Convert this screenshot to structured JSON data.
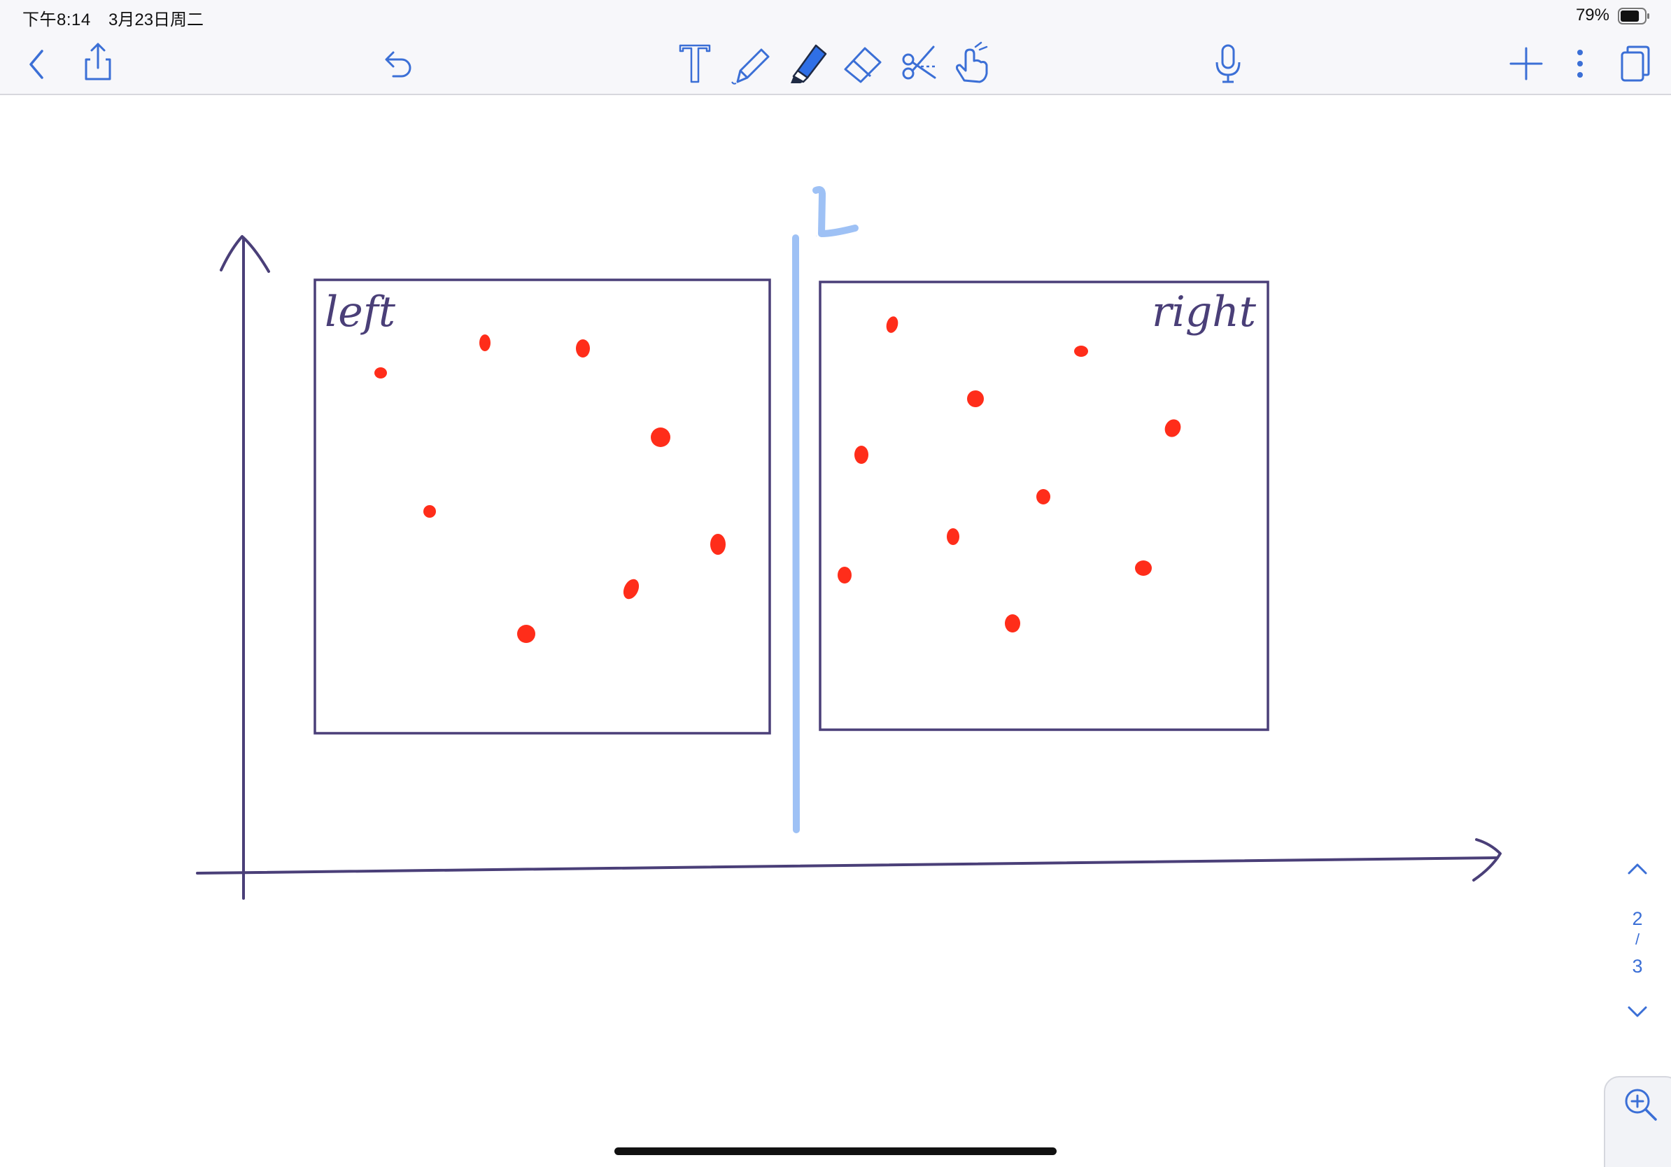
{
  "status_bar": {
    "time": "下午8:14",
    "date": "3月23日周二",
    "battery_percent": "79%",
    "battery_level": 0.79
  },
  "toolbar": {
    "left": [
      "back-icon",
      "share-icon",
      "undo-icon"
    ],
    "tools": [
      "text-tool-icon",
      "pen-tool-icon",
      "highlighter-tool-icon",
      "eraser-tool-icon",
      "lasso-tool-icon",
      "hand-tool-icon"
    ],
    "selected_tool": "highlighter-tool-icon",
    "right": [
      "microphone-icon",
      "add-page-icon",
      "more-icon",
      "pages-icon"
    ],
    "accent_color": "#3b6fd6"
  },
  "drawing": {
    "left_label": "left",
    "right_label": "right",
    "divider_label": "L",
    "ink_color": "#4a3f78",
    "dot_color": "#ff2d1a",
    "divider_color": "#9ec1f5"
  },
  "page_nav": {
    "current": "2",
    "separator": "/",
    "total": "3"
  }
}
